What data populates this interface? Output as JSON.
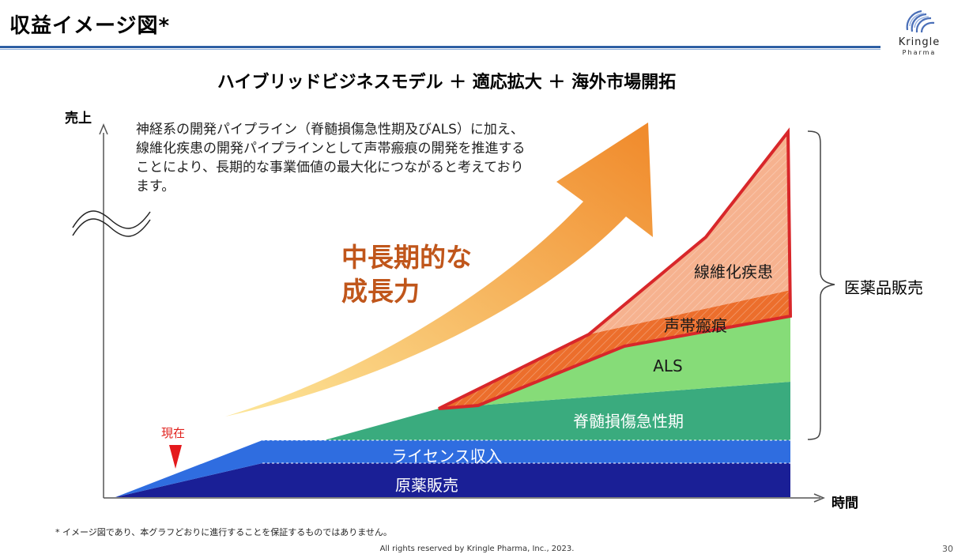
{
  "header": {
    "title": "収益イメージ図*",
    "logo_name": "Kringle",
    "logo_sub": "Pharma"
  },
  "diagram": {
    "subtitle": "ハイブリッドビジネスモデル ＋ 適応拡大 ＋ 海外市場開拓",
    "y_axis_label": "売上",
    "x_axis_label": "時間",
    "description": "神経系の開発パイプライン（脊髄損傷急性期及びALS）に加え、線維化疾患の開発パイプラインとして声帯瘢痕の開発を推進することにより、長期的な事業価値の最大化につながると考えております。",
    "growth_line1": "中長期的な",
    "growth_line2": "成長力",
    "current_marker": "現在",
    "segments": {
      "raw_materials": "原薬販売",
      "license": "ライセンス収入",
      "spinal_cord": "脊髄損傷急性期",
      "als": "ALS",
      "vocal_scar": "声帯瘢痕",
      "fibrosis": "線維化疾患"
    },
    "bracket_label": "医薬品販売",
    "colors": {
      "raw_materials": "#1a1f96",
      "license": "#2f6de0",
      "spinal_cord": "#3aab7e",
      "als": "#86dc78",
      "vocal_scar": "#ec6e2c",
      "fibrosis": "#f6b28f",
      "outline": "#d8272a",
      "growth_text": "#c0561b",
      "arrow_start": "#fde79a",
      "arrow_end": "#f0892a"
    }
  },
  "footer": {
    "footnote": "* イメージ図であり、本グラフどおりに進行することを保証するものではありません。",
    "copyright": "All rights reserved by Kringle Pharma, Inc., 2023.",
    "page_number": "30"
  }
}
